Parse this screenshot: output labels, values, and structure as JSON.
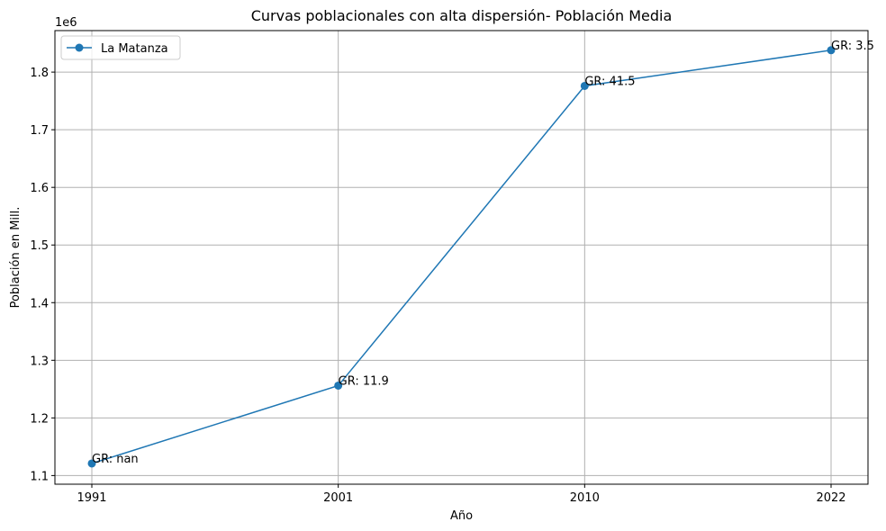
{
  "chart_data": {
    "type": "line",
    "title": "Curvas poblacionales con alta dispersión- Población Media",
    "xlabel": "Año",
    "ylabel": "Población en Mill.",
    "y_offset_label": "1e6",
    "x_categories": [
      "1991",
      "2001",
      "2010",
      "2022"
    ],
    "y_ticks": [
      "1.1",
      "1.2",
      "1.3",
      "1.4",
      "1.5",
      "1.6",
      "1.7",
      "1.8"
    ],
    "y_tick_values": [
      1100000,
      1200000,
      1300000,
      1400000,
      1500000,
      1600000,
      1700000,
      1800000
    ],
    "ylim": [
      1085000,
      1872000
    ],
    "grid": true,
    "legend_position": "top-left",
    "series": [
      {
        "name": "La Matanza",
        "color": "#1f77b4",
        "values": [
          1121000,
          1256000,
          1776000,
          1838000
        ],
        "annotations": [
          "GR: nan",
          "GR: 11.9",
          "GR: 41.5",
          "GR: 3.5"
        ]
      }
    ]
  }
}
